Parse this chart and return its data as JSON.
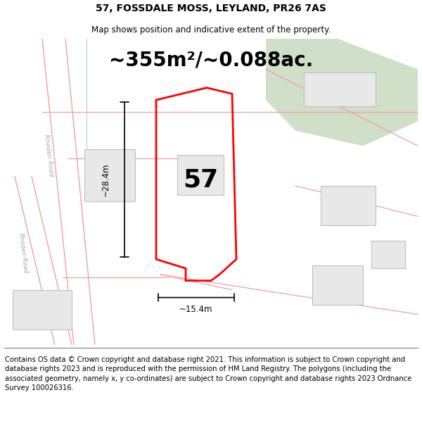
{
  "title": "57, FOSSDALE MOSS, LEYLAND, PR26 7AS",
  "subtitle": "Map shows position and indicative extent of the property.",
  "area_text": "~355m²/~0.088ac.",
  "number_label": "57",
  "dim_height": "~28.4m",
  "dim_width": "~15.4m",
  "footer": "Contains OS data © Crown copyright and database right 2021. This information is subject to Crown copyright and database rights 2023 and is reproduced with the permission of HM Land Registry. The polygons (including the associated geometry, namely x, y co-ordinates) are subject to Crown copyright and database rights 2023 Ordnance Survey 100026316.",
  "title_fontsize": 10,
  "subtitle_fontsize": 8.5,
  "area_fontsize": 20,
  "label_fontsize": 26,
  "footer_fontsize": 7.2,
  "road_color": "#f0a0a0",
  "building_face": "#e8e8e8",
  "building_edge": "#c0c0c0",
  "green_face": "#cfdfc8",
  "map_bg": "#ffffff"
}
